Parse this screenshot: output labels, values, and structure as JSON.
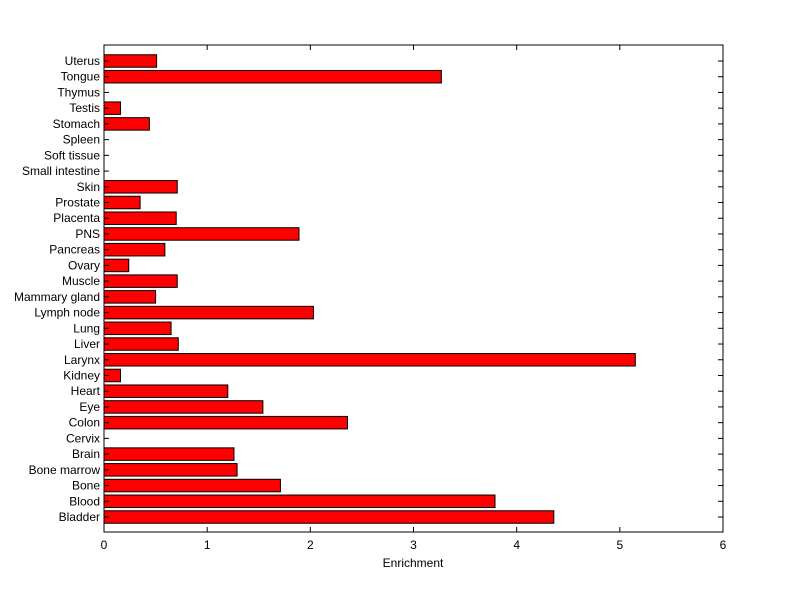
{
  "chart_data": {
    "type": "bar",
    "orientation": "horizontal",
    "xlabel": "Enrichment",
    "ylabel": "",
    "title": "",
    "xlim": [
      0,
      6
    ],
    "xticks": [
      0,
      1,
      2,
      3,
      4,
      5,
      6
    ],
    "grid": false,
    "bar_color": "#ff0000",
    "categories": [
      "Bladder",
      "Blood",
      "Bone",
      "Bone marrow",
      "Brain",
      "Cervix",
      "Colon",
      "Eye",
      "Heart",
      "Kidney",
      "Larynx",
      "Liver",
      "Lung",
      "Lymph node",
      "Mammary gland",
      "Muscle",
      "Ovary",
      "Pancreas",
      "PNS",
      "Placenta",
      "Prostate",
      "Skin",
      "Small intestine",
      "Soft tissue",
      "Spleen",
      "Stomach",
      "Testis",
      "Thymus",
      "Tongue",
      "Uterus"
    ],
    "values": [
      4.36,
      3.79,
      1.71,
      1.29,
      1.26,
      0,
      2.36,
      1.54,
      1.2,
      0.16,
      5.15,
      0.72,
      0.65,
      2.03,
      0.5,
      0.71,
      0.24,
      0.59,
      1.89,
      0.7,
      0.35,
      0.71,
      0,
      0,
      0,
      0.44,
      0.16,
      0,
      3.27,
      0.51
    ]
  }
}
